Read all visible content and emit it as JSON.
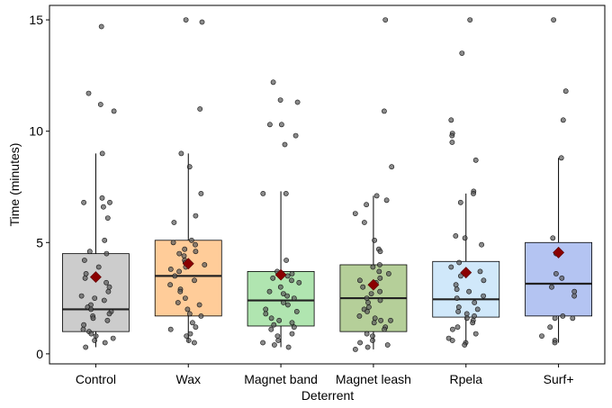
{
  "chart_data": {
    "type": "box",
    "xlabel": "Deterrent",
    "ylabel": "Time (minutes)",
    "ylim": [
      -0.45,
      15.65
    ],
    "yticks": [
      0,
      5,
      10,
      15
    ],
    "grid": false,
    "legend": "none",
    "categories": [
      "Control",
      "Wax",
      "Magnet band",
      "Magnet leash",
      "Rpela",
      "Surf+"
    ],
    "boxes": [
      {
        "name": "Control",
        "color": "#cccccc",
        "whisker_low": 0.3,
        "q1": 1.0,
        "median": 2.0,
        "q3": 4.5,
        "whisker_high": 9.0,
        "mean": 3.45
      },
      {
        "name": "Wax",
        "color": "#ffcc99",
        "whisker_low": 0.5,
        "q1": 1.7,
        "median": 3.5,
        "q3": 5.1,
        "whisker_high": 9.0,
        "mean": 4.05
      },
      {
        "name": "Magnet band",
        "color": "#b0e5b0",
        "whisker_low": 0.3,
        "q1": 1.25,
        "median": 2.4,
        "q3": 3.7,
        "whisker_high": 7.3,
        "mean": 3.55
      },
      {
        "name": "Magnet leash",
        "color": "#b5cf99",
        "whisker_low": 0.2,
        "q1": 1.0,
        "median": 2.5,
        "q3": 4.0,
        "whisker_high": 7.1,
        "mean": 3.1
      },
      {
        "name": "Rpela",
        "color": "#d0e8fa",
        "whisker_low": 0.4,
        "q1": 1.65,
        "median": 2.45,
        "q3": 4.15,
        "whisker_high": 7.2,
        "mean": 3.65
      },
      {
        "name": "Surf+",
        "color": "#b4c4f2",
        "whisker_low": 0.5,
        "q1": 1.7,
        "median": 3.15,
        "q3": 5.0,
        "whisker_high": 8.8,
        "mean": 4.55
      }
    ],
    "points": [
      [
        14.7,
        11.7,
        11.2,
        10.9,
        9.0,
        7.0,
        6.8,
        6.8,
        6.6,
        6.1,
        5.1,
        4.6,
        4.5,
        4.2,
        3.9,
        3.6,
        3.4,
        3.2,
        3.0,
        2.8,
        2.6,
        2.5,
        2.4,
        2.2,
        2.1,
        2.0,
        1.9,
        1.8,
        1.7,
        1.6,
        1.5,
        1.3,
        1.1,
        1.0,
        0.9,
        0.8,
        0.7,
        0.6,
        0.5,
        0.3
      ],
      [
        15.0,
        14.9,
        11.0,
        9.0,
        8.4,
        7.2,
        6.2,
        5.9,
        5.1,
        5.0,
        4.9,
        4.7,
        4.6,
        4.5,
        4.4,
        4.2,
        4.1,
        4.0,
        3.9,
        3.8,
        3.7,
        3.5,
        3.3,
        3.1,
        2.9,
        2.8,
        2.5,
        2.3,
        2.2,
        2.0,
        1.8,
        1.7,
        1.4,
        1.2,
        1.1,
        0.9,
        0.8,
        0.6,
        0.5
      ],
      [
        12.2,
        11.4,
        11.3,
        10.3,
        10.3,
        9.8,
        9.4,
        7.2,
        7.2,
        4.2,
        3.7,
        3.6,
        3.5,
        3.4,
        3.3,
        3.2,
        3.0,
        2.8,
        2.7,
        2.6,
        2.5,
        2.3,
        2.2,
        2.0,
        1.9,
        1.8,
        1.6,
        1.5,
        1.4,
        1.3,
        1.2,
        1.1,
        0.9,
        0.8,
        0.6,
        0.5,
        0.4,
        0.3
      ],
      [
        15.0,
        10.9,
        8.4,
        7.1,
        6.9,
        6.7,
        6.3,
        5.9,
        5.1,
        4.7,
        4.6,
        4.0,
        3.9,
        3.7,
        3.6,
        3.4,
        3.3,
        3.2,
        3.0,
        2.8,
        2.7,
        2.5,
        2.4,
        2.3,
        2.1,
        2.0,
        1.9,
        1.7,
        1.6,
        1.5,
        1.5,
        1.4,
        1.2,
        1.1,
        0.9,
        0.8,
        0.6,
        0.5,
        0.4,
        0.3,
        0.2
      ],
      [
        15.0,
        13.5,
        10.5,
        9.9,
        9.8,
        9.5,
        8.7,
        7.3,
        7.2,
        6.8,
        5.3,
        5.2,
        4.9,
        4.1,
        3.9,
        3.7,
        3.5,
        3.3,
        3.1,
        2.9,
        2.8,
        2.6,
        2.5,
        2.3,
        2.1,
        2.0,
        1.9,
        1.8,
        1.7,
        1.6,
        1.5,
        1.4,
        1.2,
        1.1,
        0.9,
        0.7,
        0.6,
        0.5,
        0.4
      ],
      [
        15.0,
        11.8,
        10.5,
        8.8,
        5.2,
        4.5,
        3.6,
        3.4,
        3.0,
        2.8,
        2.6,
        1.7,
        1.6,
        1.6,
        1.2,
        0.8,
        0.6,
        0.5
      ]
    ]
  }
}
